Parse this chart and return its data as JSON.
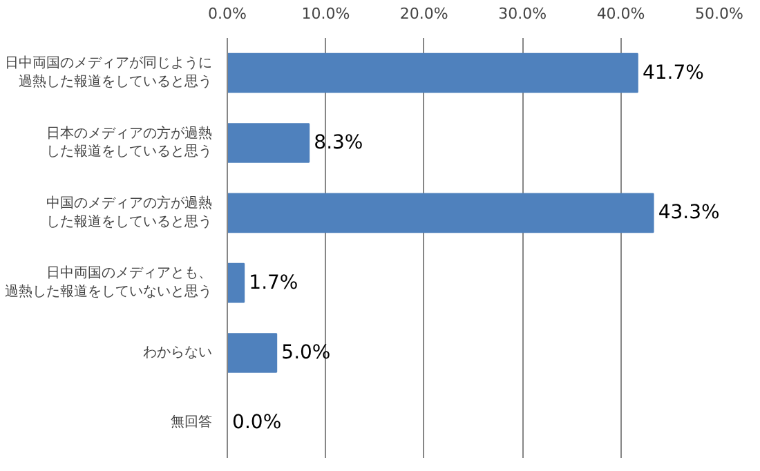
{
  "chart_data": {
    "type": "bar",
    "orientation": "horizontal",
    "categories": [
      "日中両国のメディアが同じように過熱した報道をしていると思う",
      "日本のメディアの方が過熱した報道をしていると思う",
      "中国のメディアの方が過熱した報道をしていると思う",
      "日中両国のメディアとも、過熱した報道をしていないと思う",
      "わからない",
      "無回答"
    ],
    "values": [
      41.7,
      8.3,
      43.3,
      1.7,
      5.0,
      0.0
    ],
    "value_labels": [
      "41.7%",
      "8.3%",
      "43.3%",
      "1.7%",
      "5.0%",
      "0.0%"
    ],
    "color": "#4f81bd",
    "xlim": [
      0,
      50
    ],
    "xticks": [
      {
        "value": 0,
        "label": "0.0%"
      },
      {
        "value": 10,
        "label": "10.0%"
      },
      {
        "value": 20,
        "label": "20.0%"
      },
      {
        "value": 30,
        "label": "30.0%"
      },
      {
        "value": 40,
        "label": "40.0%"
      },
      {
        "value": 50,
        "label": "50.0%"
      }
    ],
    "grid": "x"
  }
}
